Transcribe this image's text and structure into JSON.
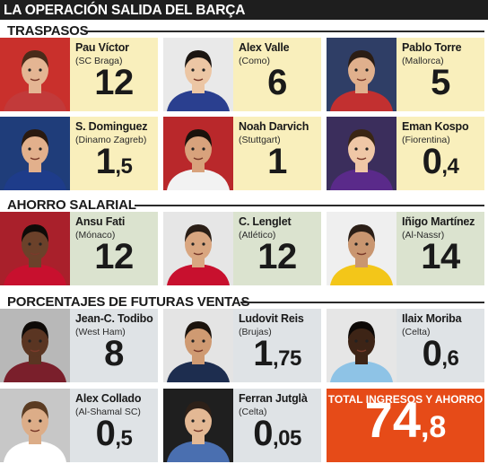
{
  "header": {
    "title": "LA OPERACIÓN SALIDA DEL BARÇA"
  },
  "sections": {
    "traspasos": "TRASPASOS",
    "ahorro": "AHORRO SALARIAL",
    "porcentajes": "PORCENTAJES DE FUTURAS VENTAS"
  },
  "colors": {
    "traspasos_bg": "#f9efbc",
    "ahorro_bg": "#dbe3cf",
    "porcentajes_bg": "#dfe3e6",
    "total_bg": "#e64b18",
    "header_bg": "#1e1e1e"
  },
  "players": [
    {
      "name": "Pau Víctor",
      "club": "(SC Braga)",
      "value_whole": "12",
      "value_dec": ""
    },
    {
      "name": "Alex Valle",
      "club": "(Como)",
      "value_whole": "6",
      "value_dec": ""
    },
    {
      "name": "Pablo Torre",
      "club": "(Mallorca)",
      "value_whole": "5",
      "value_dec": ""
    },
    {
      "name": "S. Dominguez",
      "club": "(Dinamo Zagreb)",
      "value_whole": "1",
      "value_dec": ",5"
    },
    {
      "name": "Noah Darvich",
      "club": "(Stuttgart)",
      "value_whole": "1",
      "value_dec": ""
    },
    {
      "name": "Eman Kospo",
      "club": "(Fiorentina)",
      "value_whole": "0",
      "value_dec": ",4"
    },
    {
      "name": "Ansu Fati",
      "club": "(Mónaco)",
      "value_whole": "12",
      "value_dec": ""
    },
    {
      "name": "C. Lenglet",
      "club": "(Atlético)",
      "value_whole": "12",
      "value_dec": ""
    },
    {
      "name": "Iñigo Martínez",
      "club": "(Al-Nassr)",
      "value_whole": "14",
      "value_dec": ""
    },
    {
      "name": "Jean-C. Todibo",
      "club": "(West Ham)",
      "value_whole": "8",
      "value_dec": ""
    },
    {
      "name": "Ludovit Reis",
      "club": "(Brujas)",
      "value_whole": "1",
      "value_dec": ",75"
    },
    {
      "name": "Ilaix Moriba",
      "club": "(Celta)",
      "value_whole": "0",
      "value_dec": ",6"
    },
    {
      "name": "Alex Collado",
      "club": "(Al-Shamal SC)",
      "value_whole": "0",
      "value_dec": ",5"
    },
    {
      "name": "Ferran Jutglà",
      "club": "(Celta)",
      "value_whole": "0",
      "value_dec": ",05"
    }
  ],
  "total": {
    "label": "TOTAL INGRESOS Y AHORRO",
    "value_whole": "74",
    "value_dec": ",8"
  }
}
